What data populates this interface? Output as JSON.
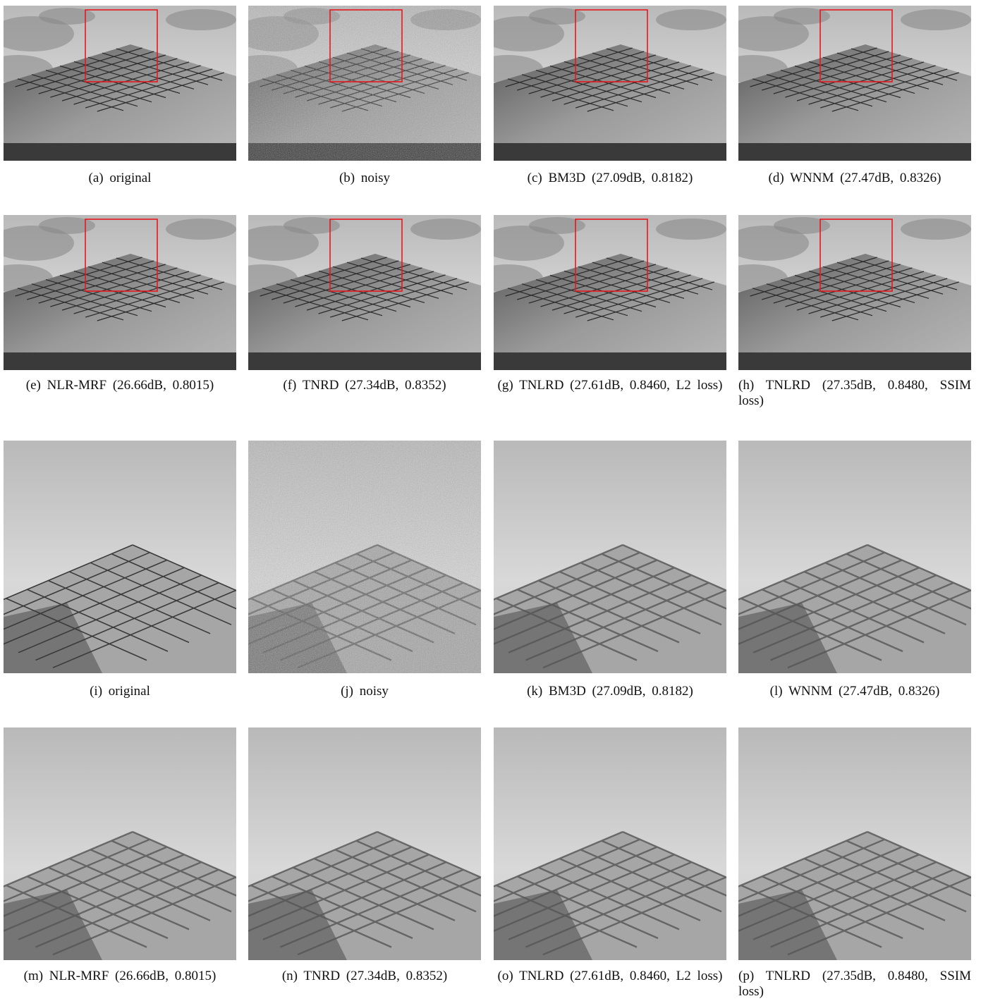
{
  "figure": {
    "panels": [
      {
        "caption": "(a) original"
      },
      {
        "caption": "(b) noisy"
      },
      {
        "caption": "(c) BM3D (27.09dB, 0.8182)"
      },
      {
        "caption": "(d) WNNM (27.47dB, 0.8326)"
      },
      {
        "caption": "(e) NLR-MRF (26.66dB, 0.8015)"
      },
      {
        "caption": "(f) TNRD (27.34dB, 0.8352)"
      },
      {
        "caption": "(g) TNLRD (27.61dB, 0.8460, L2 loss)"
      },
      {
        "caption": "(h) TNLRD (27.35dB, 0.8480, SSIM loss)"
      },
      {
        "caption": "(i) original"
      },
      {
        "caption": "(j) noisy"
      },
      {
        "caption": "(k) BM3D (27.09dB, 0.8182)"
      },
      {
        "caption": "(l) WNNM (27.47dB, 0.8326)"
      },
      {
        "caption": "(m) NLR-MRF (26.66dB, 0.8015)"
      },
      {
        "caption": "(n) TNRD (27.34dB, 0.8352)"
      },
      {
        "caption": "(o) TNLRD (27.61dB, 0.8460, L2 loss)"
      },
      {
        "caption": "(p) TNLRD (27.35dB, 0.8480, SSIM loss)"
      }
    ]
  }
}
